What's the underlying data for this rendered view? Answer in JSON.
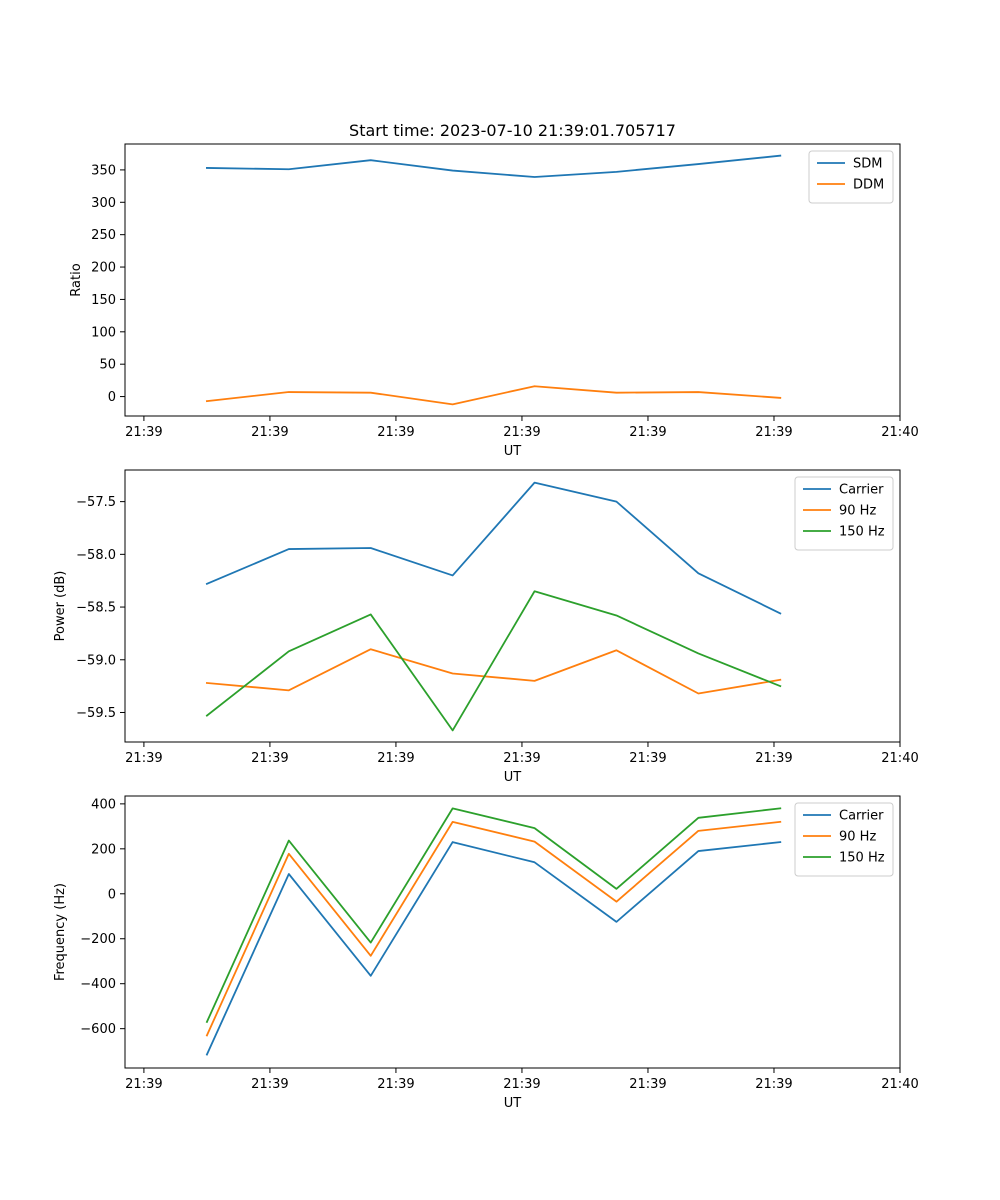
{
  "chart_data": [
    {
      "type": "line",
      "title": "Start time: 2023-07-10 21:39:01.705717",
      "xlabel": "UT",
      "ylabel": "Ratio",
      "x_ticks": [
        "21:39",
        "21:39",
        "21:39",
        "21:39",
        "21:39",
        "21:39",
        "21:40"
      ],
      "x_tick_positions": [
        0,
        1,
        2,
        3,
        4,
        5,
        6
      ],
      "xlim": [
        -0.15,
        6.0
      ],
      "x": [
        0.5,
        1.15,
        1.8,
        2.45,
        3.1,
        3.75,
        4.4,
        5.05
      ],
      "ylim": [
        -30,
        390
      ],
      "y_ticks": [
        0,
        50,
        100,
        150,
        200,
        250,
        300,
        350
      ],
      "y_tick_labels": [
        "0",
        "50",
        "100",
        "150",
        "200",
        "250",
        "300",
        "350"
      ],
      "legend_position": "upper right",
      "series": [
        {
          "name": "SDM",
          "color": "#1f77b4",
          "values": [
            353,
            351,
            365,
            349,
            339,
            347,
            359,
            372
          ]
        },
        {
          "name": "DDM",
          "color": "#ff7f0e",
          "values": [
            -7,
            7,
            6,
            -12,
            16,
            6,
            7,
            -2
          ]
        }
      ]
    },
    {
      "type": "line",
      "title": "",
      "xlabel": "UT",
      "ylabel": "Power (dB)",
      "x_ticks": [
        "21:39",
        "21:39",
        "21:39",
        "21:39",
        "21:39",
        "21:39",
        "21:40"
      ],
      "x_tick_positions": [
        0,
        1,
        2,
        3,
        4,
        5,
        6
      ],
      "xlim": [
        -0.15,
        6.0
      ],
      "x": [
        0.5,
        1.15,
        1.8,
        2.45,
        3.1,
        3.75,
        4.4,
        5.05
      ],
      "ylim": [
        -59.78,
        -57.2
      ],
      "y_ticks": [
        -59.5,
        -59.0,
        -58.5,
        -58.0,
        -57.5
      ],
      "y_tick_labels": [
        "−59.5",
        "−59.0",
        "−58.5",
        "−58.0",
        "−57.5"
      ],
      "legend_position": "upper right",
      "series": [
        {
          "name": "Carrier",
          "color": "#1f77b4",
          "values": [
            -58.28,
            -57.95,
            -57.94,
            -58.2,
            -57.32,
            -57.5,
            -58.18,
            -58.56
          ]
        },
        {
          "name": "90 Hz",
          "color": "#ff7f0e",
          "values": [
            -59.22,
            -59.29,
            -58.9,
            -59.13,
            -59.2,
            -58.91,
            -59.32,
            -59.19
          ]
        },
        {
          "name": "150 Hz",
          "color": "#2ca02c",
          "values": [
            -59.53,
            -58.92,
            -58.57,
            -59.67,
            -58.35,
            -58.58,
            -58.94,
            -59.25
          ]
        }
      ]
    },
    {
      "type": "line",
      "title": "",
      "xlabel": "UT",
      "ylabel": "Frequency (Hz)",
      "x_ticks": [
        "21:39",
        "21:39",
        "21:39",
        "21:39",
        "21:39",
        "21:39",
        "21:40"
      ],
      "x_tick_positions": [
        0,
        1,
        2,
        3,
        4,
        5,
        6
      ],
      "xlim": [
        -0.15,
        6.0
      ],
      "x": [
        0.5,
        1.15,
        1.8,
        2.45,
        3.1,
        3.75,
        4.4,
        5.05
      ],
      "ylim": [
        -775,
        435
      ],
      "y_ticks": [
        -600,
        -400,
        -200,
        0,
        200,
        400
      ],
      "y_tick_labels": [
        "−600",
        "−400",
        "−200",
        "0",
        "200",
        "400"
      ],
      "legend_position": "upper right",
      "series": [
        {
          "name": "Carrier",
          "color": "#1f77b4",
          "values": [
            -715,
            88,
            -365,
            230,
            140,
            -125,
            190,
            230
          ]
        },
        {
          "name": "90 Hz",
          "color": "#ff7f0e",
          "values": [
            -630,
            178,
            -276,
            320,
            232,
            -35,
            280,
            320
          ]
        },
        {
          "name": "150 Hz",
          "color": "#2ca02c",
          "values": [
            -570,
            237,
            -217,
            380,
            292,
            22,
            338,
            380
          ]
        }
      ]
    }
  ]
}
